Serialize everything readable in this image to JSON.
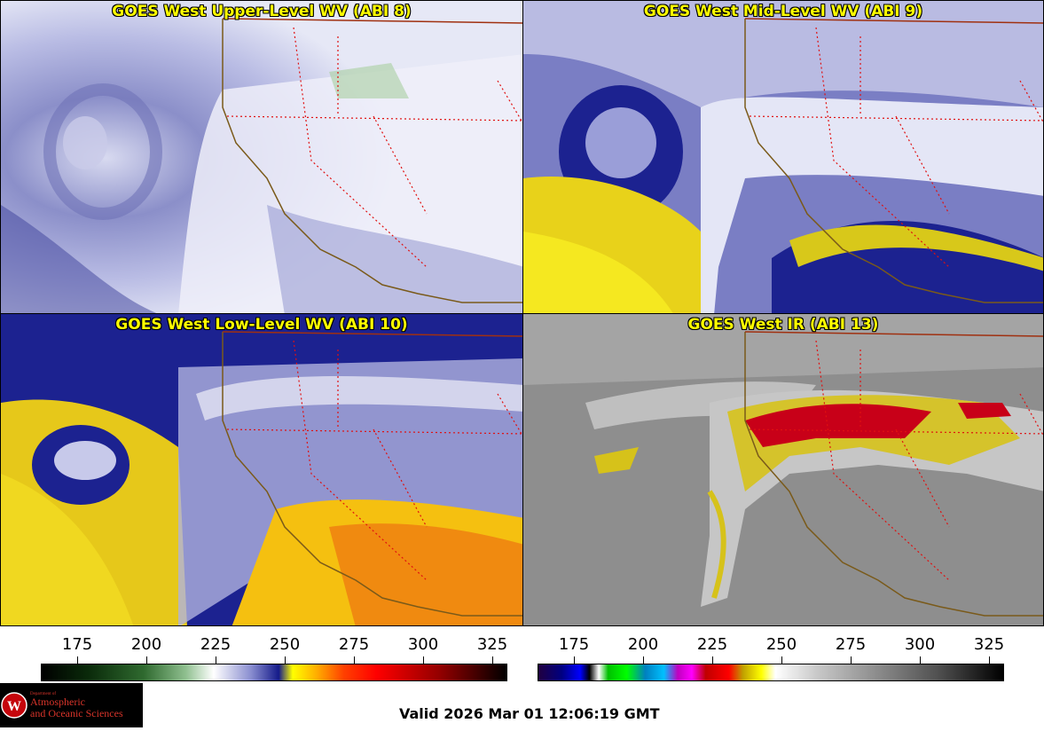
{
  "panels": [
    {
      "title": "GOES West Upper-Level WV (ABI 8)"
    },
    {
      "title": "GOES West Mid-Level WV (ABI 9)"
    },
    {
      "title": "GOES West Low-Level WV (ABI 10)"
    },
    {
      "title": "GOES West IR (ABI 13)"
    }
  ],
  "colorbar_left": {
    "ticks": [
      "175",
      "200",
      "225",
      "250",
      "275",
      "300",
      "325"
    ]
  },
  "colorbar_right": {
    "ticks": [
      "175",
      "200",
      "225",
      "250",
      "275",
      "300",
      "325"
    ]
  },
  "logo": {
    "line1": "Department of",
    "line2": "Atmospheric",
    "line3": "and Oceanic Sciences"
  },
  "valid_time": "Valid 2026 Mar 01 12:06:19 GMT"
}
